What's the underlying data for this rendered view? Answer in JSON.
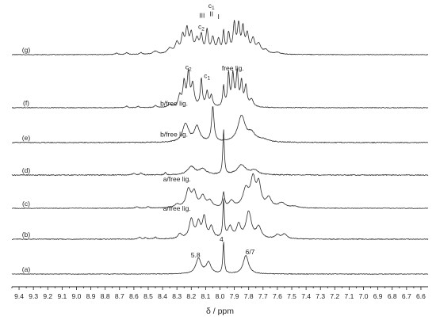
{
  "chart_data": {
    "type": "line",
    "title": "",
    "xlabel": "δ / ppm",
    "ylabel": "",
    "xlim": [
      9.45,
      6.55
    ],
    "x_reversed": true,
    "grid": false,
    "legend": "none",
    "x_ticks": [
      9.4,
      9.3,
      9.2,
      9.1,
      9.0,
      8.9,
      8.8,
      8.7,
      8.6,
      8.5,
      8.4,
      8.3,
      8.2,
      8.1,
      8.0,
      7.9,
      7.8,
      7.7,
      7.6,
      7.5,
      7.4,
      7.3,
      7.2,
      7.1,
      7.0,
      6.9,
      6.8,
      6.7,
      6.6
    ],
    "x_tick_labels": [
      "9.4",
      "9.3",
      "9.2",
      "9.1",
      "9.0",
      "8.9",
      "8.8",
      "8.7",
      "8.6",
      "8.5",
      "8.4",
      "8.3",
      "8.2",
      "8.1",
      "8.0",
      "7.9",
      "7.8",
      "7.7",
      "7.6",
      "7.5",
      "7.4",
      "7.3",
      "7.2",
      "7.1",
      "7.0",
      "6.9",
      "6.8",
      "6.7",
      "6.6"
    ],
    "series": [
      {
        "label": "(a)",
        "peaks": [
          {
            "x": 8.15,
            "h": 0.48,
            "w": 0.022
          },
          {
            "x": 8.08,
            "h": 0.35,
            "w": 0.02
          },
          {
            "x": 7.975,
            "h": 1.0,
            "w": 0.006
          },
          {
            "x": 7.82,
            "h": 0.58,
            "w": 0.022
          }
        ],
        "annotations": [
          {
            "text": "5.8",
            "x": 8.17,
            "level": 0.52
          },
          {
            "text": "4",
            "x": 7.99,
            "level": 1.02
          },
          {
            "text": "6/7",
            "x": 7.79,
            "level": 0.62
          }
        ]
      },
      {
        "label": "(b)",
        "peaks": [
          {
            "x": 8.56,
            "h": 0.05,
            "w": 0.008
          },
          {
            "x": 8.52,
            "h": 0.04,
            "w": 0.008
          },
          {
            "x": 8.45,
            "h": 0.05,
            "w": 0.008
          },
          {
            "x": 8.28,
            "h": 0.12,
            "w": 0.015
          },
          {
            "x": 8.2,
            "h": 0.5,
            "w": 0.018
          },
          {
            "x": 8.15,
            "h": 0.4,
            "w": 0.016
          },
          {
            "x": 8.11,
            "h": 0.55,
            "w": 0.014
          },
          {
            "x": 8.06,
            "h": 0.3,
            "w": 0.015
          },
          {
            "x": 7.975,
            "h": 1.0,
            "w": 0.006
          },
          {
            "x": 7.93,
            "h": 0.3,
            "w": 0.018
          },
          {
            "x": 7.87,
            "h": 0.35,
            "w": 0.016
          },
          {
            "x": 7.8,
            "h": 0.7,
            "w": 0.022
          },
          {
            "x": 7.73,
            "h": 0.3,
            "w": 0.02
          },
          {
            "x": 7.6,
            "h": 0.1,
            "w": 0.02
          },
          {
            "x": 7.55,
            "h": 0.12,
            "w": 0.02
          }
        ],
        "annotations": [
          {
            "text": "a/free lig.",
            "x": 8.3,
            "level": 0.75
          }
        ]
      },
      {
        "label": "(c)",
        "peaks": [
          {
            "x": 8.58,
            "h": 0.05,
            "w": 0.01
          },
          {
            "x": 8.5,
            "h": 0.05,
            "w": 0.01
          },
          {
            "x": 8.3,
            "h": 0.1,
            "w": 0.02
          },
          {
            "x": 8.22,
            "h": 0.55,
            "w": 0.02
          },
          {
            "x": 8.18,
            "h": 0.45,
            "w": 0.018
          },
          {
            "x": 8.12,
            "h": 0.35,
            "w": 0.02
          },
          {
            "x": 8.07,
            "h": 0.2,
            "w": 0.02
          },
          {
            "x": 7.975,
            "h": 0.45,
            "w": 0.008
          },
          {
            "x": 7.92,
            "h": 0.2,
            "w": 0.02
          },
          {
            "x": 7.82,
            "h": 0.55,
            "w": 0.025
          },
          {
            "x": 7.77,
            "h": 0.85,
            "w": 0.02
          },
          {
            "x": 7.73,
            "h": 0.7,
            "w": 0.018
          },
          {
            "x": 7.66,
            "h": 0.3,
            "w": 0.02
          },
          {
            "x": 7.57,
            "h": 0.15,
            "w": 0.03
          },
          {
            "x": 7.48,
            "h": 0.05,
            "w": 0.03
          }
        ],
        "annotations": [
          {
            "text": "a/free lig.",
            "x": 8.3,
            "level": 0.85
          }
        ]
      },
      {
        "label": "(d)",
        "peaks": [
          {
            "x": 8.38,
            "h": 0.06,
            "w": 0.005
          },
          {
            "x": 8.2,
            "h": 0.18,
            "w": 0.03
          },
          {
            "x": 8.12,
            "h": 0.12,
            "w": 0.03
          },
          {
            "x": 7.975,
            "h": 1.0,
            "w": 0.006
          },
          {
            "x": 7.85,
            "h": 0.22,
            "w": 0.035
          },
          {
            "x": 7.76,
            "h": 0.1,
            "w": 0.03
          },
          {
            "x": 8.6,
            "h": 0.04,
            "w": 0.01
          },
          {
            "x": 8.55,
            "h": 0.04,
            "w": 0.01
          }
        ],
        "annotations": [
          {
            "text": "b/free lig.",
            "x": 8.32,
            "level": 0.85
          }
        ]
      },
      {
        "label": "(e)",
        "peaks": [
          {
            "x": 8.24,
            "h": 0.42,
            "w": 0.025
          },
          {
            "x": 8.16,
            "h": 0.35,
            "w": 0.022
          },
          {
            "x": 8.05,
            "h": 0.8,
            "w": 0.01
          },
          {
            "x": 7.85,
            "h": 0.6,
            "w": 0.03
          },
          {
            "x": 7.78,
            "h": 0.18,
            "w": 0.03
          },
          {
            "x": 7.7,
            "h": 0.06,
            "w": 0.04
          }
        ],
        "annotations": [
          {
            "text": "b/free lig.",
            "x": 8.32,
            "level": 0.85
          }
        ]
      },
      {
        "label": "(f)",
        "peaks": [
          {
            "x": 8.65,
            "h": 0.04,
            "w": 0.008
          },
          {
            "x": 8.57,
            "h": 0.04,
            "w": 0.008
          },
          {
            "x": 8.45,
            "h": 0.05,
            "w": 0.01
          },
          {
            "x": 8.35,
            "h": 0.08,
            "w": 0.015
          },
          {
            "x": 8.28,
            "h": 0.3,
            "w": 0.012
          },
          {
            "x": 8.25,
            "h": 0.65,
            "w": 0.01
          },
          {
            "x": 8.22,
            "h": 0.9,
            "w": 0.01
          },
          {
            "x": 8.19,
            "h": 0.6,
            "w": 0.012
          },
          {
            "x": 8.13,
            "h": 0.75,
            "w": 0.008
          },
          {
            "x": 8.09,
            "h": 0.4,
            "w": 0.01
          },
          {
            "x": 8.06,
            "h": 0.3,
            "w": 0.01
          },
          {
            "x": 7.975,
            "h": 0.55,
            "w": 0.007
          },
          {
            "x": 7.94,
            "h": 0.9,
            "w": 0.008
          },
          {
            "x": 7.91,
            "h": 0.85,
            "w": 0.009
          },
          {
            "x": 7.88,
            "h": 0.9,
            "w": 0.009
          },
          {
            "x": 7.85,
            "h": 0.65,
            "w": 0.009
          },
          {
            "x": 7.82,
            "h": 0.55,
            "w": 0.01
          },
          {
            "x": 7.78,
            "h": 0.2,
            "w": 0.015
          }
        ],
        "annotations": [
          {
            "text": "c",
            "sub": "2",
            "x": 8.22,
            "level": 1.05
          },
          {
            "text": "c",
            "sub": "1",
            "x": 8.09,
            "level": 0.82
          },
          {
            "text": "free lig.",
            "x": 7.91,
            "level": 1.02
          }
        ]
      },
      {
        "label": "(g)",
        "peaks": [
          {
            "x": 8.72,
            "h": 0.05,
            "w": 0.01
          },
          {
            "x": 8.65,
            "h": 0.06,
            "w": 0.01
          },
          {
            "x": 8.55,
            "h": 0.06,
            "w": 0.01
          },
          {
            "x": 8.45,
            "h": 0.1,
            "w": 0.02
          },
          {
            "x": 8.35,
            "h": 0.18,
            "w": 0.02
          },
          {
            "x": 8.3,
            "h": 0.35,
            "w": 0.015
          },
          {
            "x": 8.26,
            "h": 0.55,
            "w": 0.012
          },
          {
            "x": 8.23,
            "h": 0.75,
            "w": 0.012
          },
          {
            "x": 8.2,
            "h": 0.6,
            "w": 0.012
          },
          {
            "x": 8.16,
            "h": 0.45,
            "w": 0.015
          },
          {
            "x": 8.13,
            "h": 0.55,
            "w": 0.01
          },
          {
            "x": 8.09,
            "h": 0.75,
            "w": 0.01
          },
          {
            "x": 8.05,
            "h": 0.5,
            "w": 0.012
          },
          {
            "x": 8.01,
            "h": 0.45,
            "w": 0.012
          },
          {
            "x": 7.975,
            "h": 0.7,
            "w": 0.007
          },
          {
            "x": 7.94,
            "h": 0.65,
            "w": 0.01
          },
          {
            "x": 7.9,
            "h": 0.95,
            "w": 0.01
          },
          {
            "x": 7.87,
            "h": 0.9,
            "w": 0.01
          },
          {
            "x": 7.84,
            "h": 0.8,
            "w": 0.01
          },
          {
            "x": 7.81,
            "h": 0.6,
            "w": 0.012
          },
          {
            "x": 7.77,
            "h": 0.45,
            "w": 0.014
          },
          {
            "x": 7.73,
            "h": 0.3,
            "w": 0.018
          },
          {
            "x": 7.68,
            "h": 0.12,
            "w": 0.02
          },
          {
            "x": 7.6,
            "h": 0.06,
            "w": 0.025
          }
        ],
        "annotations": [
          {
            "text": "c",
            "sub": "1",
            "x": 8.06,
            "level": 1.55
          },
          {
            "text": "III",
            "x": 8.125,
            "level": 1.22
          },
          {
            "text": "II",
            "x": 8.06,
            "level": 1.28
          },
          {
            "text": "I",
            "x": 8.01,
            "level": 1.18
          },
          {
            "text": "c",
            "sub": "2",
            "x": 8.13,
            "level": 0.85
          }
        ]
      }
    ]
  }
}
